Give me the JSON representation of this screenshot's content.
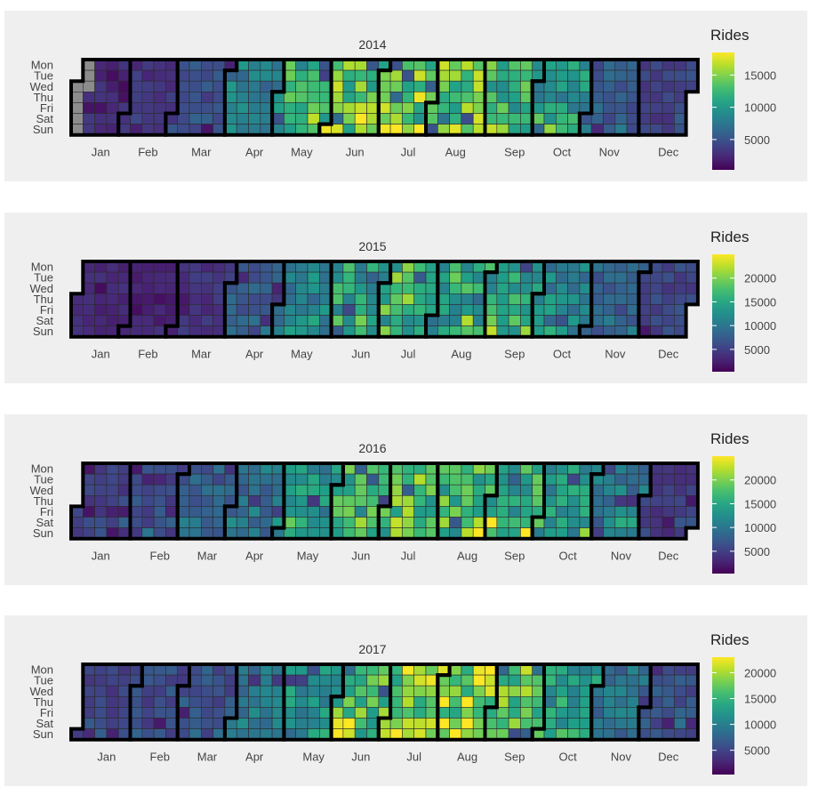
{
  "chart_data": [
    {
      "type": "heatmap",
      "title": "2014",
      "legend_title": "Rides",
      "weekdays": [
        "Mon",
        "Tue",
        "Wed",
        "Thu",
        "Fri",
        "Sat",
        "Sun"
      ],
      "months": [
        "Jan",
        "Feb",
        "Mar",
        "Apr",
        "May",
        "Jun",
        "Jul",
        "Aug",
        "Sep",
        "Oct",
        "Nov",
        "Dec"
      ],
      "legend_ticks": [
        5000,
        10000,
        15000
      ],
      "scale_range": [
        300,
        18500
      ],
      "legend_position": "right",
      "monthly_typical_rides": [
        2500,
        3000,
        4500,
        8000,
        11500,
        13500,
        14500,
        14000,
        12000,
        10000,
        5500,
        4000
      ],
      "missing_days": [
        "2014-01-01",
        "2014-01-02",
        "2014-01-03",
        "2014-01-04",
        "2014-01-05",
        "2014-01-06",
        "2014-01-07",
        "2014-01-08"
      ]
    },
    {
      "type": "heatmap",
      "title": "2015",
      "legend_title": "Rides",
      "weekdays": [
        "Mon",
        "Tue",
        "Wed",
        "Thu",
        "Fri",
        "Sat",
        "Sun"
      ],
      "months": [
        "Jan",
        "Feb",
        "Mar",
        "Apr",
        "May",
        "Jun",
        "Jul",
        "Aug",
        "Sep",
        "Oct",
        "Nov",
        "Dec"
      ],
      "legend_ticks": [
        5000,
        10000,
        15000,
        20000
      ],
      "scale_range": [
        300,
        25000
      ],
      "legend_position": "right",
      "monthly_typical_rides": [
        3000,
        2500,
        4000,
        7500,
        11000,
        14000,
        17000,
        15500,
        14500,
        11500,
        8000,
        5500
      ],
      "missing_days": []
    },
    {
      "type": "heatmap",
      "title": "2016",
      "legend_title": "Rides",
      "weekdays": [
        "Mon",
        "Tue",
        "Wed",
        "Thu",
        "Fri",
        "Sat",
        "Sun"
      ],
      "months": [
        "Jan",
        "Feb",
        "Mar",
        "Apr",
        "May",
        "Jun",
        "Jul",
        "Aug",
        "Sep",
        "Oct",
        "Nov",
        "Dec"
      ],
      "legend_ticks": [
        5000,
        10000,
        15000,
        20000
      ],
      "scale_range": [
        300,
        25000
      ],
      "legend_position": "right",
      "monthly_typical_rides": [
        5000,
        6000,
        7500,
        9500,
        12500,
        16000,
        17500,
        16500,
        15500,
        13000,
        10000,
        4500
      ],
      "missing_days": []
    },
    {
      "type": "heatmap",
      "title": "2017",
      "legend_title": "Rides",
      "weekdays": [
        "Mon",
        "Tue",
        "Wed",
        "Thu",
        "Fri",
        "Sat",
        "Sun"
      ],
      "months": [
        "Jan",
        "Feb",
        "Mar",
        "Apr",
        "May",
        "Jun",
        "Jul",
        "Aug",
        "Sep",
        "Oct",
        "Nov",
        "Dec"
      ],
      "legend_ticks": [
        5000,
        10000,
        15000,
        20000
      ],
      "scale_range": [
        300,
        23000
      ],
      "legend_position": "right",
      "monthly_typical_rides": [
        4500,
        5500,
        6000,
        9000,
        11500,
        16000,
        18000,
        18500,
        16500,
        12500,
        9000,
        6000
      ],
      "missing_days": []
    }
  ]
}
